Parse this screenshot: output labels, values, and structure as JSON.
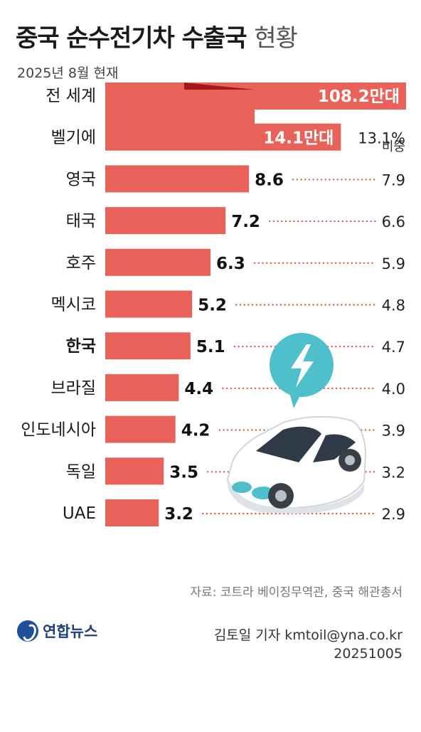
{
  "header": {
    "title_main": "중국 순수전기차 수출국",
    "title_light": "현황",
    "subtitle": "2025년 8월 현재"
  },
  "chart_data": {
    "type": "bar",
    "orientation": "horizontal",
    "share_header": "비중",
    "categories": [
      "전 세계",
      "벨기에",
      "영국",
      "태국",
      "호주",
      "멕시코",
      "한국",
      "브라질",
      "인도네시아",
      "독일",
      "UAE"
    ],
    "highlight": "한국",
    "value_labels": [
      "108.2만대",
      "14.1만대",
      "8.6",
      "7.2",
      "6.3",
      "5.2",
      "5.1",
      "4.4",
      "4.2",
      "3.5",
      "3.2"
    ],
    "values": [
      108.2,
      14.1,
      8.6,
      7.2,
      6.3,
      5.2,
      5.1,
      4.4,
      4.2,
      3.5,
      3.2
    ],
    "shares": [
      "",
      "13.1%",
      "7.9",
      "6.6",
      "5.9",
      "4.8",
      "4.7",
      "4.0",
      "3.9",
      "3.2",
      "2.9"
    ],
    "axis_break": "전 세계 bar truncated",
    "colors": {
      "bar": "#e8625a",
      "bar_dark": "#a3181d",
      "dots": "#e05a55"
    }
  },
  "footer": {
    "source": "자료: 코트라 베이징무역관, 중국 해관총서",
    "logo": "연합뉴스",
    "credit": "김토일 기자 kmtoil@yna.co.kr",
    "date": "20251005"
  }
}
